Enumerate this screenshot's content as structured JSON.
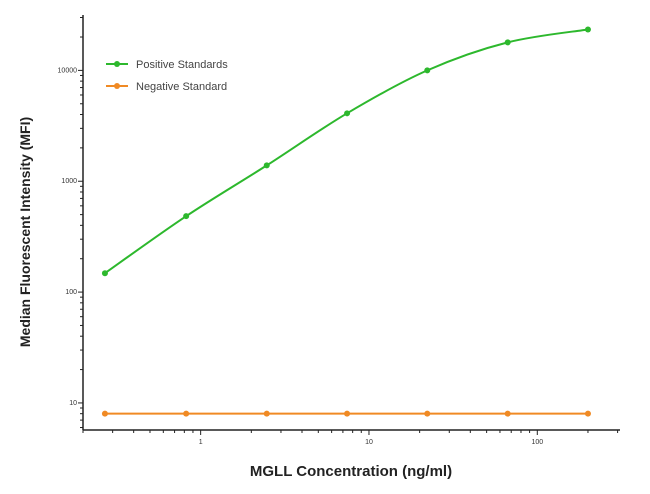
{
  "chart_data": {
    "type": "line",
    "title": "",
    "xlabel": "MGLL Concentration (ng/ml)",
    "ylabel": "Median  Fluorescent Intensity  (MFI)",
    "x_scale": "log",
    "y_scale": "log",
    "xlim": [
      0.2,
      310
    ],
    "ylim": [
      5.7,
      31600
    ],
    "x_ticks": [
      1,
      10,
      100
    ],
    "x_tick_labels": [
      "1",
      "10",
      "100"
    ],
    "y_ticks": [
      10,
      100,
      1000,
      10000
    ],
    "y_tick_labels": [
      "10",
      "100",
      "1000",
      "10000"
    ],
    "grid": false,
    "legend_position": "top-left",
    "x": [
      0.27,
      0.82,
      2.47,
      7.41,
      22.2,
      66.7,
      200
    ],
    "series": [
      {
        "name": "Positive Standards",
        "color": "#2db82d",
        "values": [
          148,
          484,
          1390,
          4100,
          10000,
          17900,
          23400
        ]
      },
      {
        "name": "Negative Standard",
        "color": "#f08a24",
        "values": [
          8,
          8,
          8,
          8,
          8,
          8,
          8
        ]
      }
    ]
  }
}
